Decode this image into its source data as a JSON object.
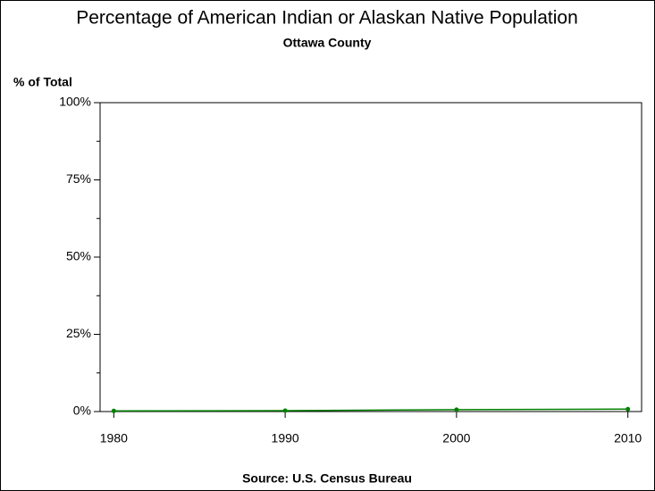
{
  "chart_data": {
    "type": "line",
    "title": "Percentage of American Indian or Alaskan Native Population",
    "subtitle": "Ottawa County",
    "y_label": "% of Total",
    "source": "Source: U.S. Census Bureau",
    "x": [
      1980,
      1990,
      2000,
      2010
    ],
    "series": [
      {
        "color": "#008000",
        "values": [
          0.2,
          0.3,
          0.6,
          0.8
        ]
      }
    ],
    "xlim": [
      1979.2,
      2010.8
    ],
    "xticks": [
      1980,
      1990,
      2000,
      2010
    ],
    "ylim": [
      0,
      100
    ],
    "yticks": [
      {
        "value": 0,
        "label": "0%"
      },
      {
        "value": 25,
        "label": "25%"
      },
      {
        "value": 50,
        "label": "50%"
      },
      {
        "value": 75,
        "label": "75%"
      },
      {
        "value": 100,
        "label": "100%"
      }
    ],
    "yminorticks": [
      12.5,
      37.5,
      62.5,
      87.5
    ]
  }
}
